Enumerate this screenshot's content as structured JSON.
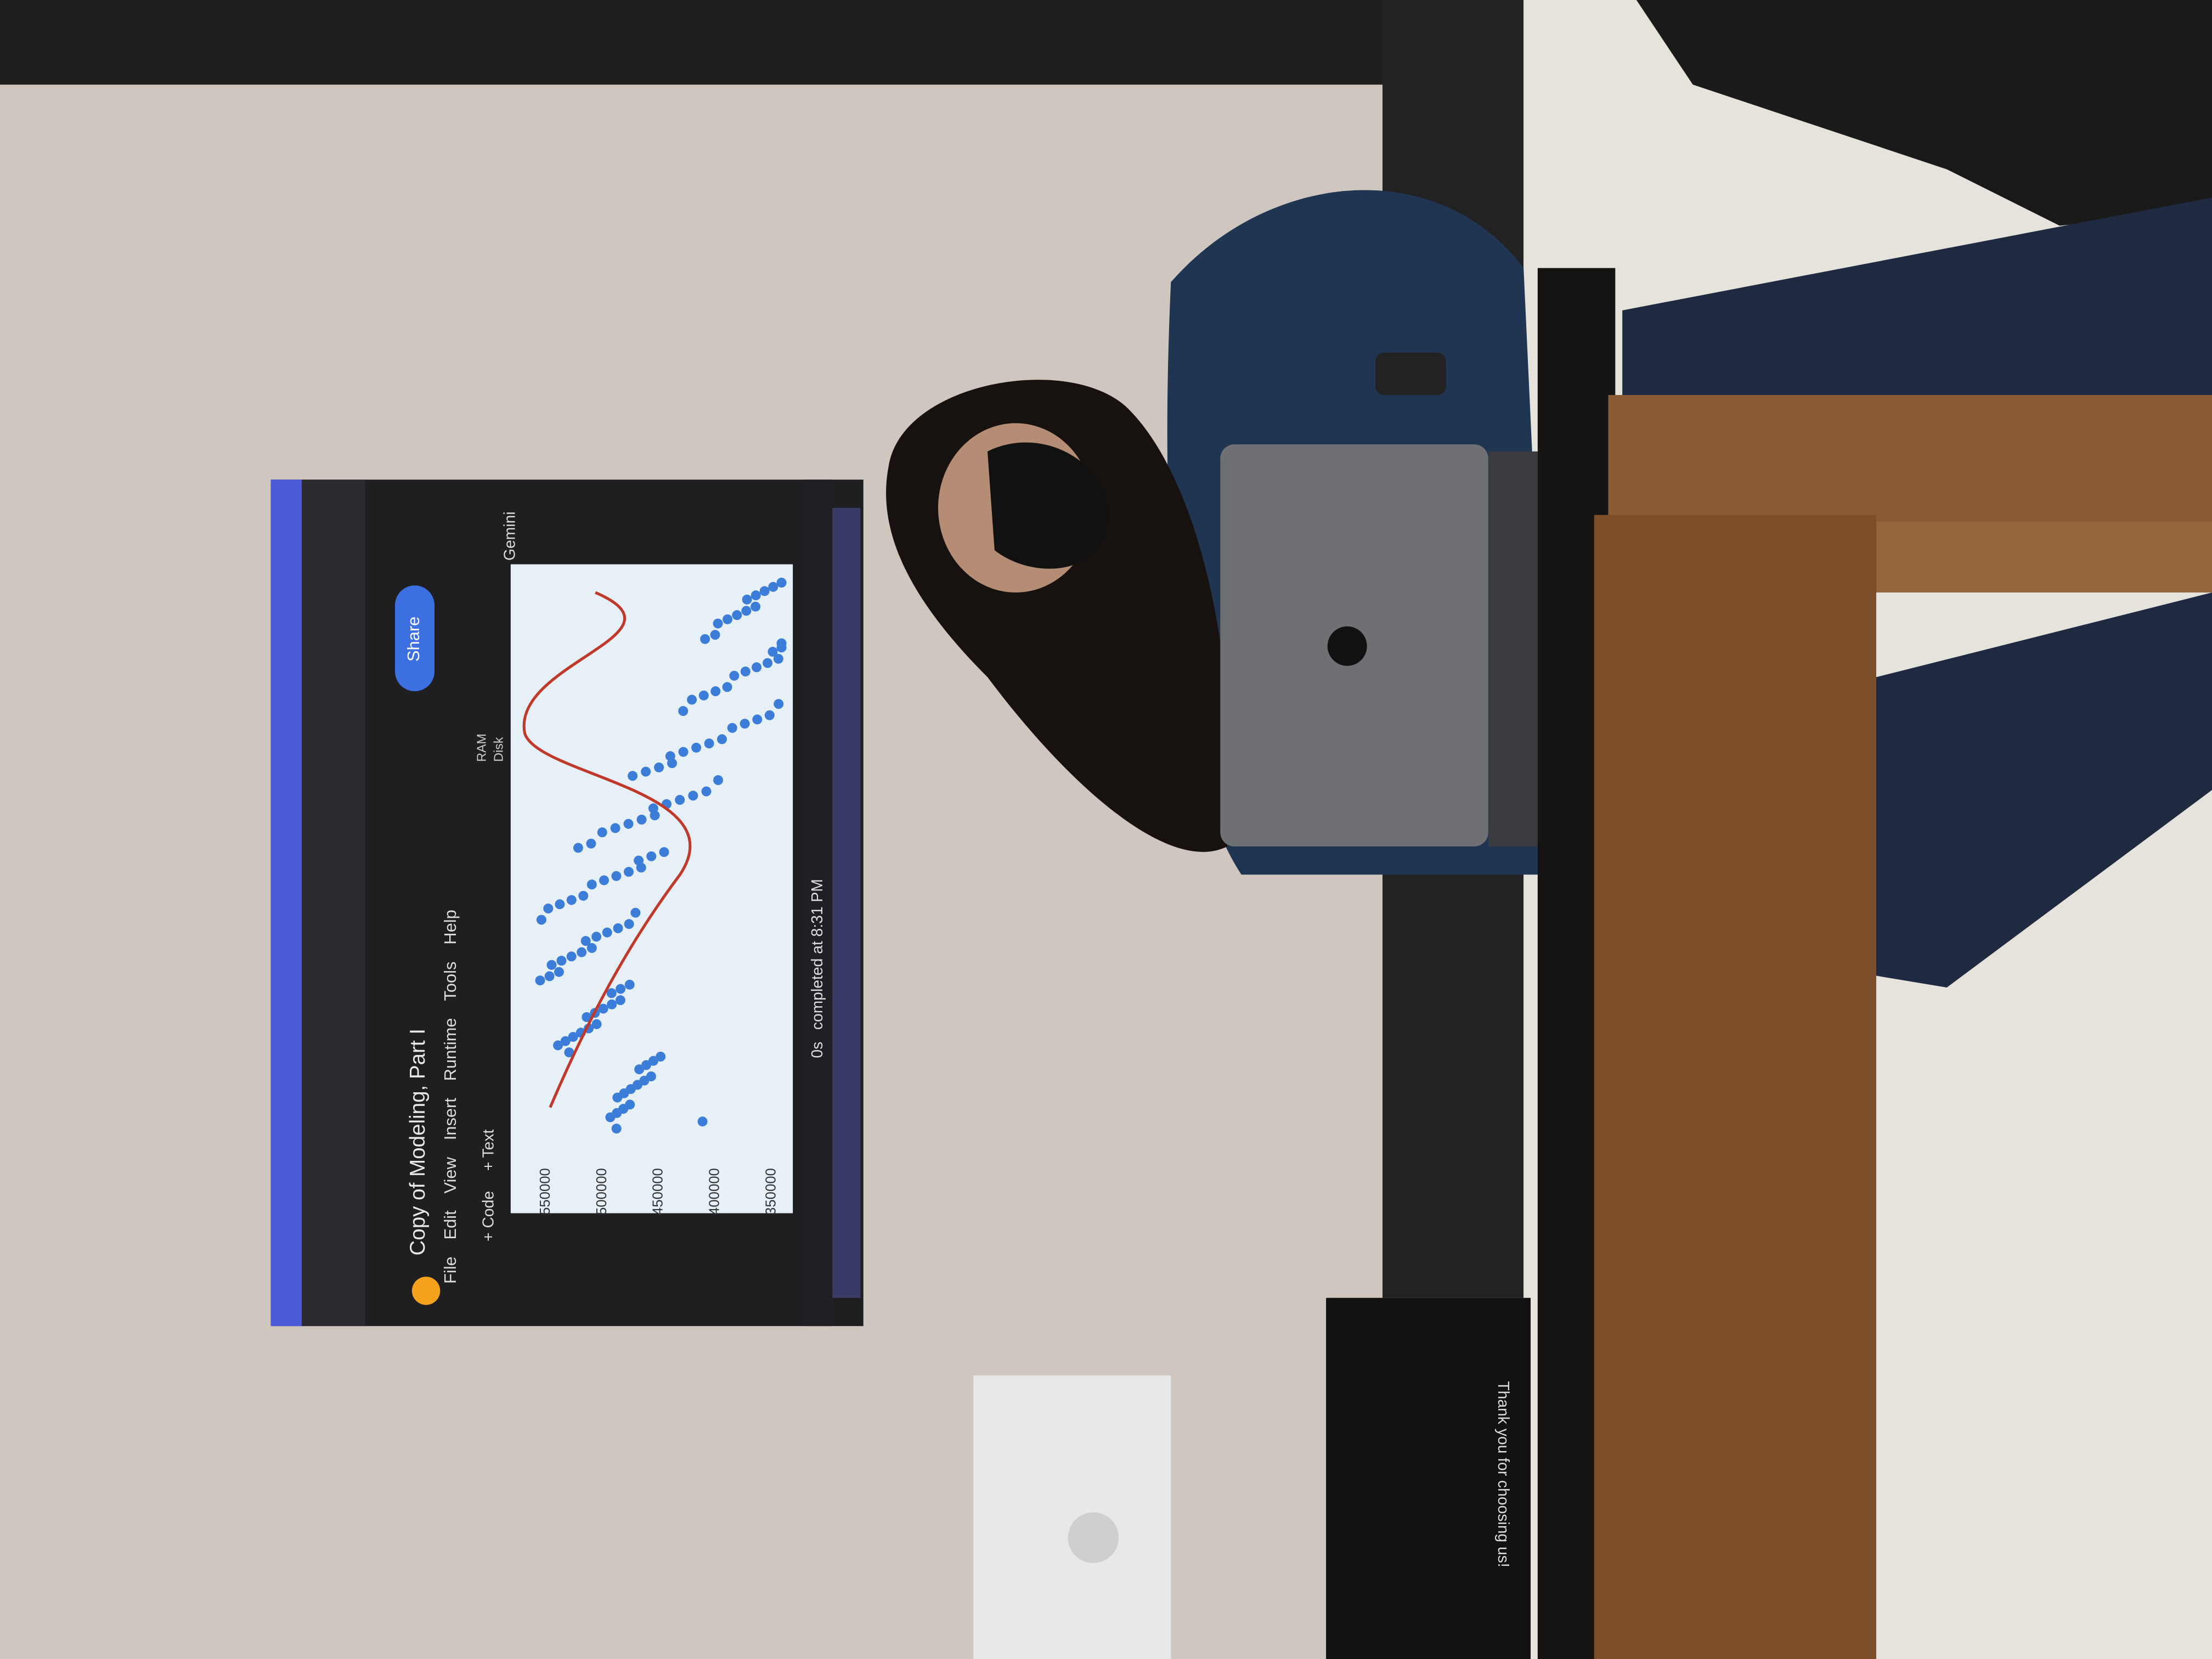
{
  "notebook": {
    "title": "Copy of Modeling, Part I",
    "menu": [
      "File",
      "Edit",
      "View",
      "Insert",
      "Runtime",
      "Tools",
      "Help"
    ],
    "share": "Share",
    "gemini": "Gemini",
    "toolbar": [
      "+ Code",
      "+ Text"
    ],
    "resources": [
      "RAM",
      "Disk"
    ],
    "plot_ticks": [
      550000,
      500000,
      450000,
      400000,
      350000
    ],
    "status": {
      "time": "0s",
      "message": "completed at 8:31 PM"
    }
  },
  "box_label": "Thank you for choosing us!"
}
